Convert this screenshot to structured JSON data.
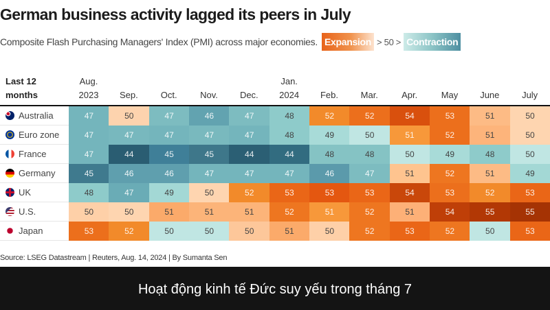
{
  "chart_data": {
    "type": "heatmap",
    "title": "German business activity lagged its peers in July",
    "subtitle": "Composite Flash Purchasing Managers' Index (PMI) across major economies.",
    "legend": {
      "expansion": "Expansion",
      "middle": "> 50 >",
      "contraction": "Contraction",
      "expansion_color": "#e8631a",
      "contraction_color": "#4e8fa1"
    },
    "corner_label": [
      "Last 12",
      "months"
    ],
    "columns": [
      [
        "Aug.",
        "2023"
      ],
      [
        "",
        "Sep."
      ],
      [
        "",
        "Oct."
      ],
      [
        "",
        "Nov."
      ],
      [
        "",
        "Dec."
      ],
      [
        "Jan.",
        "2024"
      ],
      [
        "",
        "Feb."
      ],
      [
        "",
        "Mar."
      ],
      [
        "",
        "Apr."
      ],
      [
        "",
        "May"
      ],
      [
        "",
        "June"
      ],
      [
        "",
        "July"
      ]
    ],
    "rows": [
      {
        "name": "Australia",
        "flag": "australia-flag",
        "values": [
          47,
          50,
          47,
          46,
          47,
          48,
          52,
          52,
          54,
          53,
          51,
          50
        ],
        "colors": [
          "#74b5bc",
          "#fdd3ae",
          "#7dbcc0",
          "#62a3b0",
          "#7dbcc0",
          "#8ecbca",
          "#f28a2a",
          "#ec6f1c",
          "#d9500d",
          "#ec6f1c",
          "#fdbb85",
          "#fed5b0"
        ]
      },
      {
        "name": "Euro zone",
        "flag": "eu-flag",
        "values": [
          47,
          47,
          47,
          47,
          47,
          48,
          49,
          50,
          51,
          52,
          51,
          50
        ],
        "colors": [
          "#74b5bc",
          "#78b8be",
          "#74b5bc",
          "#79b9be",
          "#74b5bc",
          "#8ecbca",
          "#a8dbd8",
          "#c0e6e3",
          "#f7983a",
          "#ec6f1c",
          "#fdb47b",
          "#fed5b0"
        ]
      },
      {
        "name": "France",
        "flag": "france-flag",
        "values": [
          47,
          44,
          45,
          45,
          44,
          44,
          48,
          48,
          50,
          49,
          48,
          50
        ],
        "colors": [
          "#74b5bc",
          "#2a5d72",
          "#3f7f98",
          "#3e778a",
          "#2b5f74",
          "#326c80",
          "#85c3c4",
          "#85c3c4",
          "#c0e6e3",
          "#a8dbd8",
          "#8ecbca",
          "#c0e6e3"
        ]
      },
      {
        "name": "Germany",
        "flag": "germany-flag",
        "values": [
          45,
          46,
          46,
          47,
          47,
          47,
          46,
          47,
          51,
          52,
          51,
          49
        ],
        "colors": [
          "#3f7a8e",
          "#5f9fae",
          "#5f9fae",
          "#74b5bc",
          "#74b5bc",
          "#74b5bc",
          "#5b9aab",
          "#7dbcc0",
          "#fec48f",
          "#ee7620",
          "#fdbb85",
          "#a3d8d5"
        ]
      },
      {
        "name": "UK",
        "flag": "uk-flag",
        "values": [
          48,
          47,
          49,
          50,
          52,
          53,
          53,
          53,
          54,
          53,
          52,
          53
        ],
        "colors": [
          "#8ecbca",
          "#6aacb6",
          "#a3d8d5",
          "#fed5b0",
          "#f28a2a",
          "#ea6617",
          "#e45710",
          "#ea6617",
          "#c9470a",
          "#ec6f1c",
          "#f28a2a",
          "#ea6617"
        ]
      },
      {
        "name": "U.S.",
        "flag": "us-flag",
        "values": [
          50,
          50,
          51,
          51,
          51,
          52,
          51,
          52,
          51,
          54,
          55,
          55
        ],
        "colors": [
          "#fed0a8",
          "#fed5b0",
          "#fbaa6a",
          "#fcb479",
          "#fcb479",
          "#ee7620",
          "#f7983a",
          "#ee7620",
          "#fdb077",
          "#bf3f08",
          "#b23805",
          "#a53304"
        ]
      },
      {
        "name": "Japan",
        "flag": "japan-flag",
        "values": [
          53,
          52,
          50,
          50,
          50,
          51,
          50,
          52,
          53,
          52,
          50,
          53
        ],
        "colors": [
          "#ec6f1c",
          "#f28a2a",
          "#c0e6e3",
          "#c0e6e3",
          "#fdc79a",
          "#fbaa6a",
          "#fed0a8",
          "#ee7620",
          "#ea6617",
          "#ee7620",
          "#c0e6e3",
          "#ea6617"
        ]
      }
    ],
    "source": "Source: LSEG Datastream | Reuters, Aug. 14, 2024 | By Sumanta Sen"
  },
  "caption": "Hoạt động kinh tế Đức suy yếu trong tháng 7"
}
